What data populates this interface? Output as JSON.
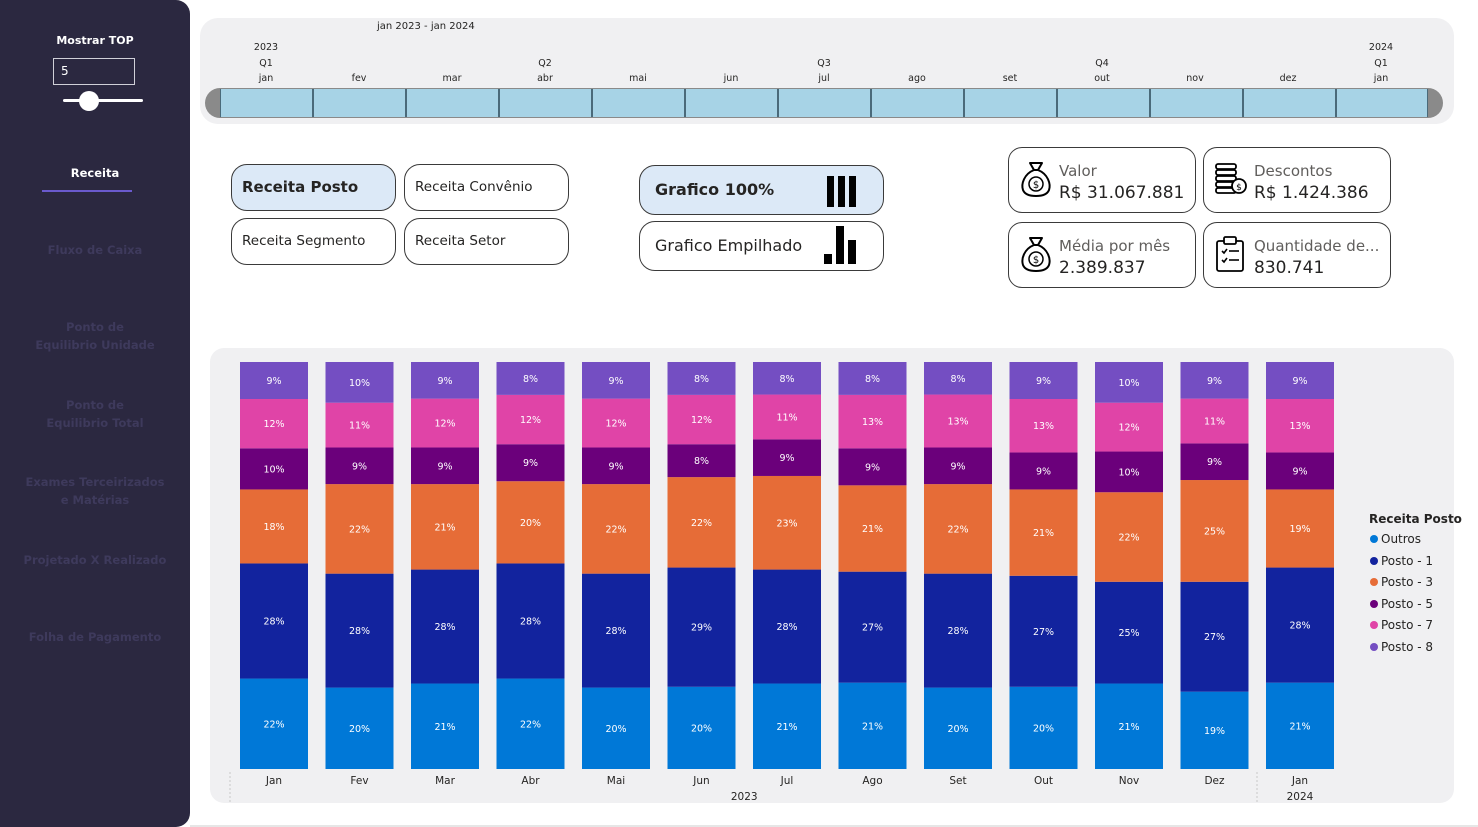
{
  "sidebar": {
    "top_label": "Mostrar TOP",
    "top_value": "5",
    "nav": [
      {
        "label": "Receita",
        "active": true
      },
      {
        "label": "Fluxo de Caixa",
        "active": false
      },
      {
        "label": "Ponto de Equilibrio Unidade",
        "active": false
      },
      {
        "label": "Ponto de Equilibrio Total",
        "active": false
      },
      {
        "label": "Exames Terceirizados e Matérias",
        "active": false
      },
      {
        "label": "Projetado X Realizado",
        "active": false
      },
      {
        "label": "Folha de Pagamento",
        "active": false
      }
    ]
  },
  "timeline": {
    "range": "jan 2023 - jan 2024",
    "year_start": "2023",
    "year_end": "2024",
    "quarters": [
      "Q1",
      "Q2",
      "Q3",
      "Q4",
      "Q1"
    ],
    "months": [
      "jan",
      "fev",
      "mar",
      "abr",
      "mai",
      "jun",
      "jul",
      "ago",
      "set",
      "out",
      "nov",
      "dez",
      "jan"
    ]
  },
  "slicers": {
    "receita_posto": "Receita Posto",
    "receita_convenio": "Receita Convênio",
    "receita_segmento": "Receita Segmento",
    "receita_setor": "Receita Setor"
  },
  "graphs": {
    "grafico_100": "Grafico 100%",
    "grafico_empilhado": "Grafico Empilhado"
  },
  "kpis": {
    "valor": {
      "label": "Valor",
      "value": "R$ 31.067.881",
      "icon": "money-bag-icon"
    },
    "descontos": {
      "label": "Descontos",
      "value": "R$ 1.424.386",
      "icon": "coin-stack-icon"
    },
    "media": {
      "label": "Média por mês",
      "value": "2.389.837",
      "icon": "money-bag-icon"
    },
    "quantidade": {
      "label": "Quantidade de...",
      "value": "830.741",
      "icon": "clipboard-check-icon"
    }
  },
  "chart_data": {
    "type": "bar",
    "stacked": "100%",
    "legend_title": "Receita Posto",
    "legend_position": "right",
    "categories": [
      "Jan",
      "Fev",
      "Mar",
      "Abr",
      "Mai",
      "Jun",
      "Jul",
      "Ago",
      "Set",
      "Out",
      "Nov",
      "Dez",
      "Jan"
    ],
    "year_groups": [
      {
        "label": "2023",
        "span": [
          0,
          11
        ]
      },
      {
        "label": "2024",
        "span": [
          12,
          12
        ]
      }
    ],
    "series": [
      {
        "name": "Outros",
        "color": "#0078d7",
        "values": [
          22,
          20,
          21,
          22,
          20,
          20,
          21,
          21,
          20,
          20,
          21,
          19,
          21
        ]
      },
      {
        "name": "Posto - 1",
        "color": "#12239e",
        "values": [
          28,
          28,
          28,
          28,
          28,
          29,
          28,
          27,
          28,
          27,
          25,
          27,
          28
        ]
      },
      {
        "name": "Posto - 3",
        "color": "#e66c37",
        "values": [
          18,
          22,
          21,
          20,
          22,
          22,
          23,
          21,
          22,
          21,
          22,
          25,
          19
        ]
      },
      {
        "name": "Posto - 5",
        "color": "#6b007b",
        "values": [
          10,
          9,
          9,
          9,
          9,
          8,
          9,
          9,
          9,
          9,
          10,
          9,
          9
        ]
      },
      {
        "name": "Posto - 7",
        "color": "#e044a7",
        "values": [
          12,
          11,
          12,
          12,
          12,
          12,
          11,
          13,
          13,
          13,
          12,
          11,
          13
        ]
      },
      {
        "name": "Posto - 8",
        "color": "#744ec2",
        "values": [
          9,
          10,
          9,
          8,
          9,
          8,
          8,
          8,
          8,
          9,
          10,
          9,
          9
        ]
      }
    ],
    "ylim": [
      0,
      100
    ],
    "grid": false
  }
}
